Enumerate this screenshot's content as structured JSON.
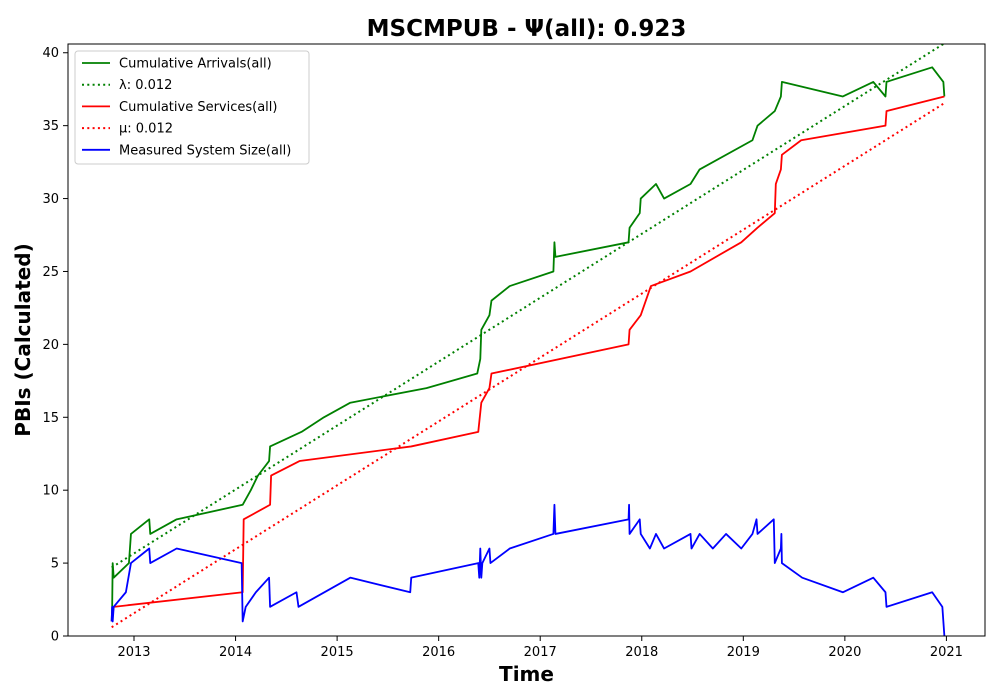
{
  "chart_data": {
    "type": "line",
    "title": "MSCMPUB -  Ψ(all): 0.923",
    "xlabel": "Time",
    "ylabel": "PBIs (Calculated)",
    "xlim": [
      2012.35,
      2021.38
    ],
    "ylim": [
      0,
      40.6
    ],
    "x_ticks": [
      2013,
      2014,
      2015,
      2016,
      2017,
      2018,
      2019,
      2020,
      2021
    ],
    "x_tick_labels": [
      "2013",
      "2014",
      "2015",
      "2016",
      "2017",
      "2018",
      "2019",
      "2020",
      "2021"
    ],
    "y_ticks": [
      0,
      5,
      10,
      15,
      20,
      25,
      30,
      35,
      40
    ],
    "y_tick_labels": [
      "0",
      "5",
      "10",
      "15",
      "20",
      "25",
      "30",
      "35",
      "40"
    ],
    "grid": false,
    "legend_position": "top-left",
    "series": [
      {
        "name": "Cumulative Arrivals(all)",
        "style": "solid",
        "color": "#008000",
        "points": [
          [
            2012.78,
            1
          ],
          [
            2012.785,
            2
          ],
          [
            2012.79,
            5
          ],
          [
            2012.8,
            4
          ],
          [
            2012.95,
            5
          ],
          [
            2012.97,
            7
          ],
          [
            2013.15,
            8
          ],
          [
            2013.16,
            7
          ],
          [
            2013.42,
            8
          ],
          [
            2014.07,
            9
          ],
          [
            2014.15,
            10
          ],
          [
            2014.22,
            11
          ],
          [
            2014.33,
            12
          ],
          [
            2014.34,
            13
          ],
          [
            2014.65,
            14
          ],
          [
            2014.87,
            15
          ],
          [
            2015.13,
            16
          ],
          [
            2015.88,
            17
          ],
          [
            2016.38,
            18
          ],
          [
            2016.41,
            19
          ],
          [
            2016.42,
            21
          ],
          [
            2016.5,
            22
          ],
          [
            2016.52,
            23
          ],
          [
            2016.7,
            24
          ],
          [
            2017.13,
            25
          ],
          [
            2017.14,
            27
          ],
          [
            2017.15,
            26
          ],
          [
            2017.87,
            27
          ],
          [
            2017.88,
            28
          ],
          [
            2017.98,
            29
          ],
          [
            2017.99,
            30
          ],
          [
            2018.14,
            31
          ],
          [
            2018.22,
            30
          ],
          [
            2018.48,
            31
          ],
          [
            2018.57,
            32
          ],
          [
            2019.09,
            34
          ],
          [
            2019.14,
            35
          ],
          [
            2019.31,
            36
          ],
          [
            2019.37,
            37
          ],
          [
            2019.38,
            38
          ],
          [
            2019.98,
            37
          ],
          [
            2020.28,
            38
          ],
          [
            2020.4,
            37
          ],
          [
            2020.41,
            38
          ],
          [
            2020.86,
            39
          ],
          [
            2020.97,
            38
          ],
          [
            2020.98,
            37
          ]
        ]
      },
      {
        "name": "λ: 0.012",
        "style": "dotted",
        "color": "#008000",
        "points": [
          [
            2012.78,
            4.7
          ],
          [
            2020.97,
            40.6
          ]
        ]
      },
      {
        "name": "Cumulative Services(all)",
        "style": "solid",
        "color": "#ff0000",
        "points": [
          [
            2012.78,
            1
          ],
          [
            2012.8,
            2
          ],
          [
            2014.07,
            3
          ],
          [
            2014.08,
            8
          ],
          [
            2014.34,
            9
          ],
          [
            2014.35,
            11
          ],
          [
            2014.63,
            12
          ],
          [
            2015.73,
            13
          ],
          [
            2016.39,
            14
          ],
          [
            2016.42,
            16
          ],
          [
            2016.5,
            17
          ],
          [
            2016.52,
            18
          ],
          [
            2017.87,
            20
          ],
          [
            2017.88,
            21
          ],
          [
            2017.99,
            22
          ],
          [
            2018.09,
            24
          ],
          [
            2018.48,
            25
          ],
          [
            2018.98,
            27
          ],
          [
            2019.14,
            28
          ],
          [
            2019.31,
            29
          ],
          [
            2019.32,
            31
          ],
          [
            2019.37,
            32
          ],
          [
            2019.38,
            33
          ],
          [
            2019.57,
            34
          ],
          [
            2020.4,
            35
          ],
          [
            2020.41,
            36
          ],
          [
            2020.98,
            37
          ]
        ]
      },
      {
        "name": "μ: 0.012",
        "style": "dotted",
        "color": "#ff0000",
        "points": [
          [
            2012.78,
            0.6
          ],
          [
            2020.97,
            36.5
          ]
        ]
      },
      {
        "name": "Measured System Size(all)",
        "style": "solid",
        "color": "#0000ff",
        "points": [
          [
            2012.78,
            1
          ],
          [
            2012.785,
            2
          ],
          [
            2012.79,
            1
          ],
          [
            2012.8,
            2
          ],
          [
            2012.92,
            3
          ],
          [
            2012.97,
            5
          ],
          [
            2013.15,
            6
          ],
          [
            2013.16,
            5
          ],
          [
            2013.42,
            6
          ],
          [
            2014.06,
            5
          ],
          [
            2014.07,
            1
          ],
          [
            2014.1,
            2
          ],
          [
            2014.2,
            3
          ],
          [
            2014.33,
            4
          ],
          [
            2014.34,
            2
          ],
          [
            2014.6,
            3
          ],
          [
            2014.62,
            2
          ],
          [
            2015.13,
            4
          ],
          [
            2015.72,
            3
          ],
          [
            2015.73,
            4
          ],
          [
            2016.39,
            5
          ],
          [
            2016.4,
            4
          ],
          [
            2016.41,
            6
          ],
          [
            2016.42,
            4
          ],
          [
            2016.43,
            5
          ],
          [
            2016.5,
            6
          ],
          [
            2016.51,
            5
          ],
          [
            2016.7,
            6
          ],
          [
            2017.13,
            7
          ],
          [
            2017.14,
            9
          ],
          [
            2017.15,
            7
          ],
          [
            2017.87,
            8
          ],
          [
            2017.875,
            9
          ],
          [
            2017.88,
            7
          ],
          [
            2017.98,
            8
          ],
          [
            2017.99,
            7
          ],
          [
            2018.08,
            6
          ],
          [
            2018.14,
            7
          ],
          [
            2018.22,
            6
          ],
          [
            2018.48,
            7
          ],
          [
            2018.49,
            6
          ],
          [
            2018.57,
            7
          ],
          [
            2018.7,
            6
          ],
          [
            2018.83,
            7
          ],
          [
            2018.98,
            6
          ],
          [
            2019.09,
            7
          ],
          [
            2019.13,
            8
          ],
          [
            2019.14,
            7
          ],
          [
            2019.3,
            8
          ],
          [
            2019.31,
            5
          ],
          [
            2019.37,
            6
          ],
          [
            2019.375,
            7
          ],
          [
            2019.38,
            5
          ],
          [
            2019.58,
            4
          ],
          [
            2019.98,
            3
          ],
          [
            2020.28,
            4
          ],
          [
            2020.4,
            3
          ],
          [
            2020.41,
            2
          ],
          [
            2020.86,
            3
          ],
          [
            2020.96,
            2
          ],
          [
            2020.97,
            1
          ],
          [
            2020.98,
            0
          ]
        ]
      }
    ]
  }
}
